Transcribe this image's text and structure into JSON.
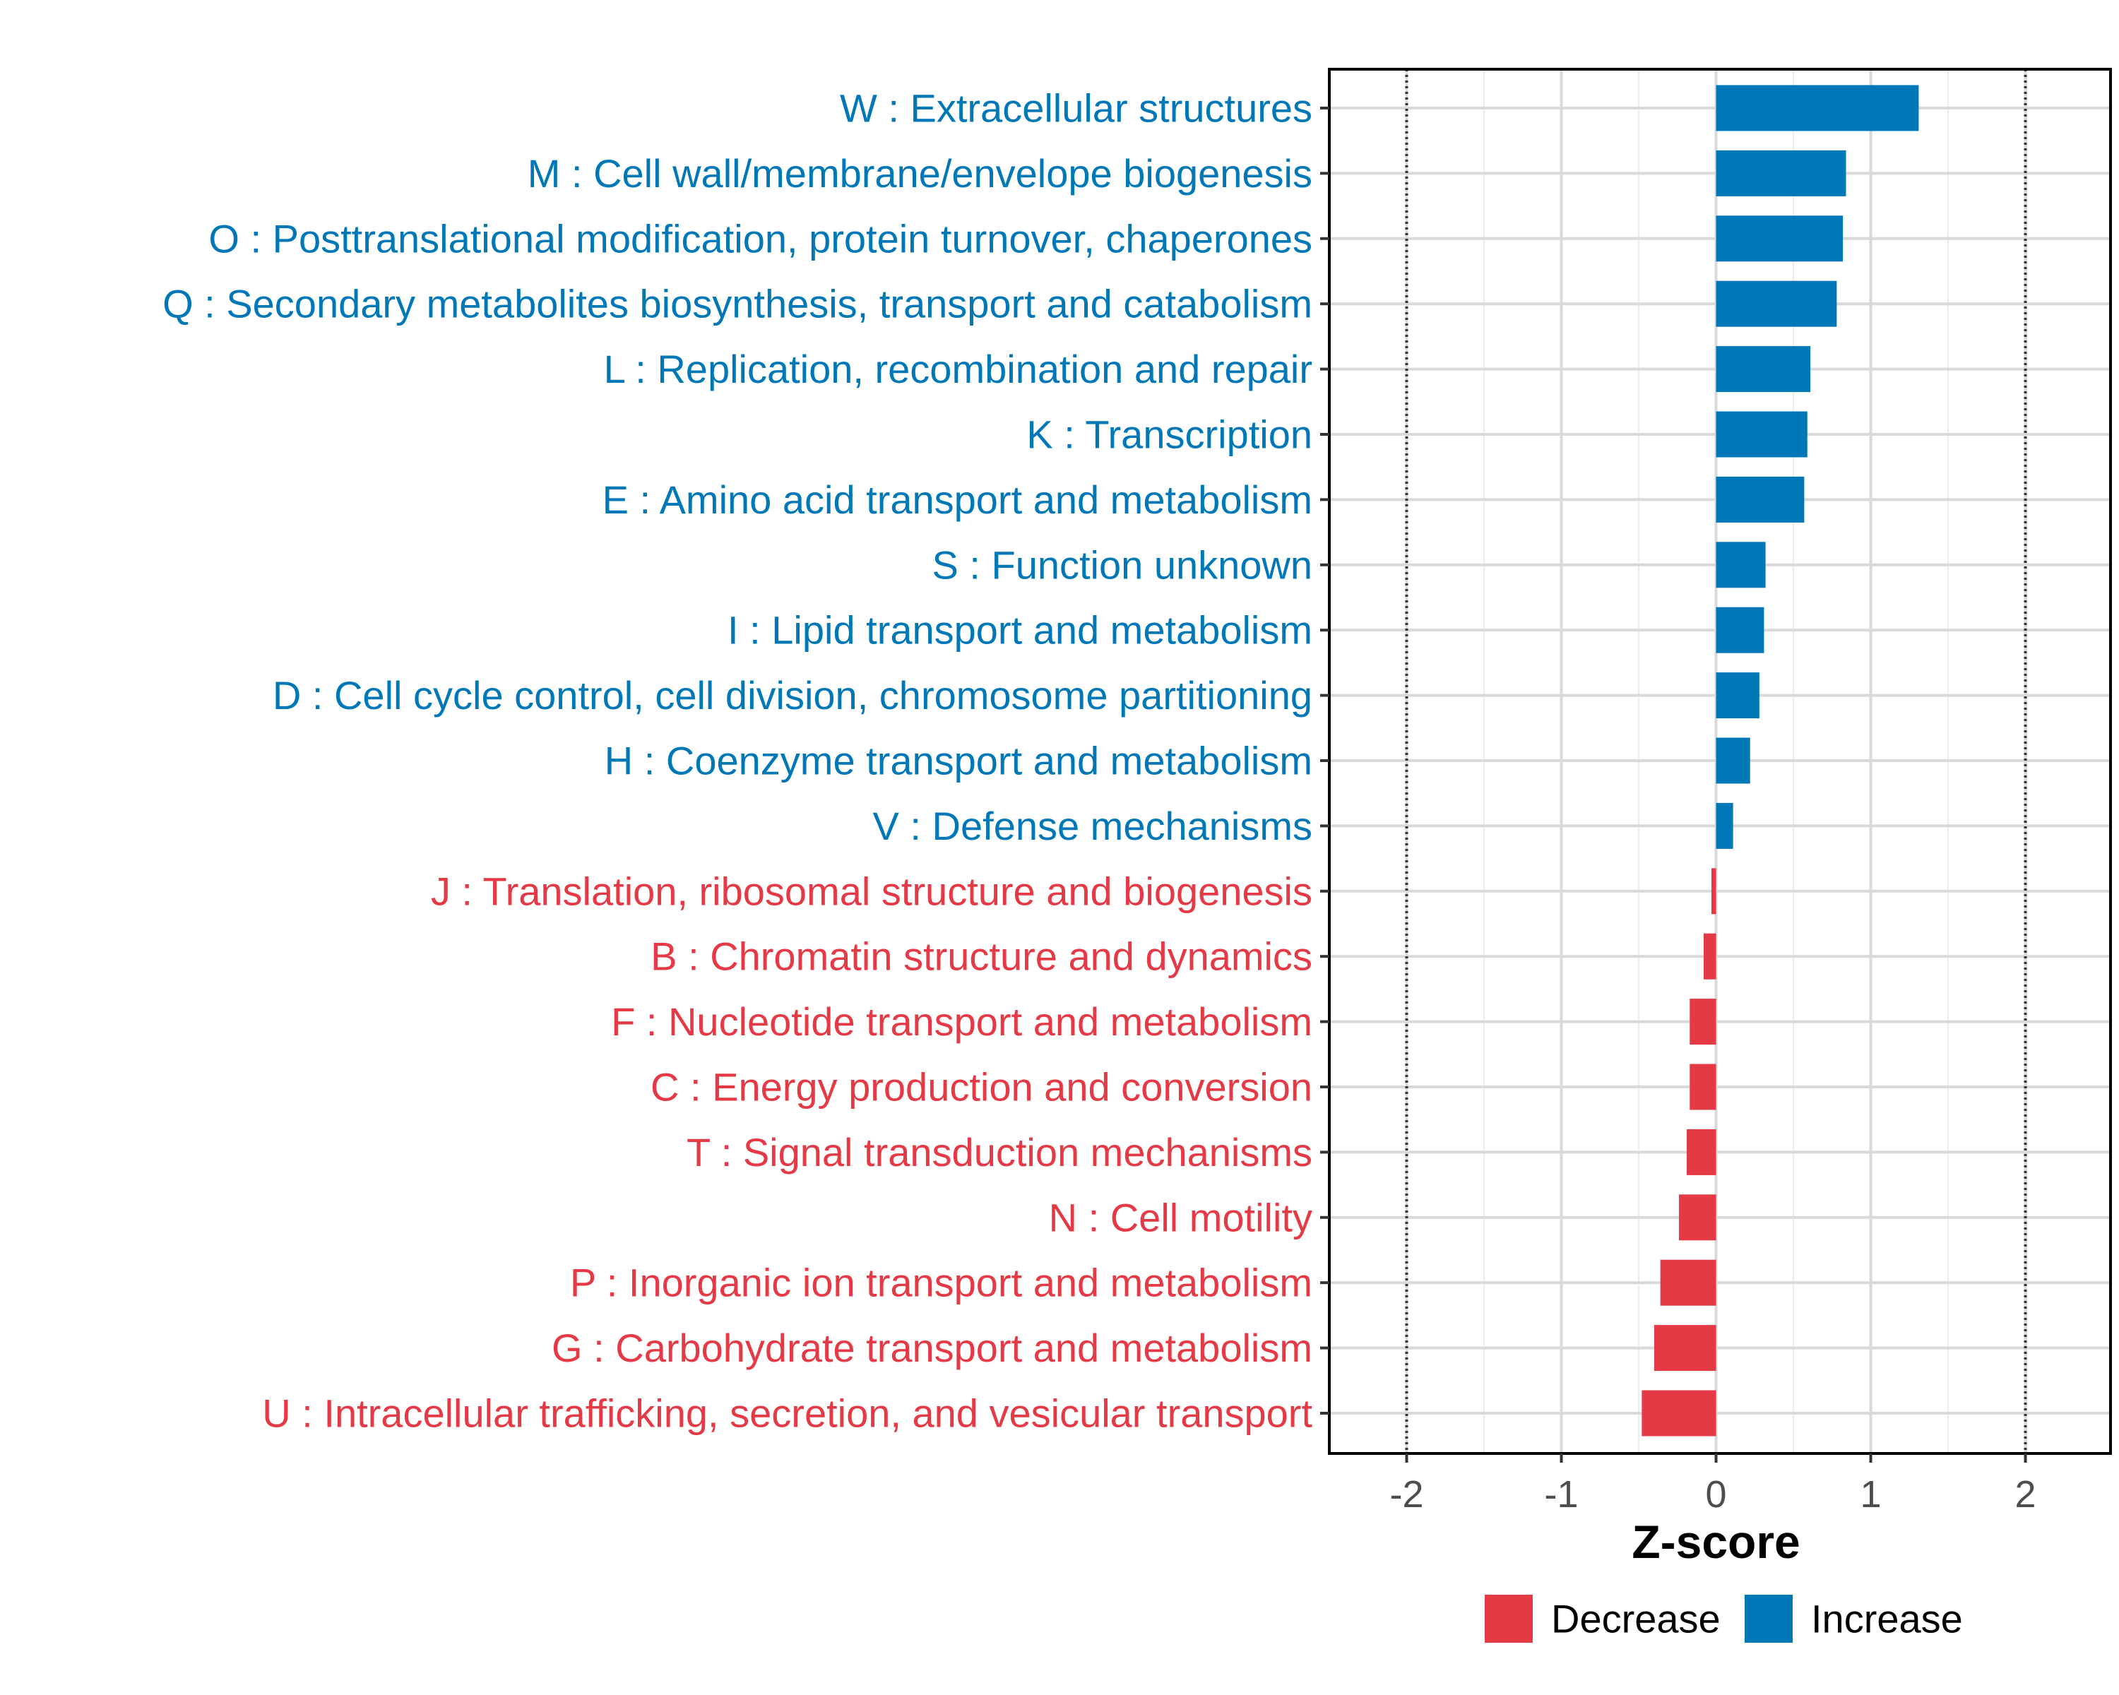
{
  "chart_data": {
    "type": "bar",
    "orientation": "horizontal",
    "xlabel": "Z-score",
    "xlim": [
      -2.5,
      2.55
    ],
    "xticks": [
      -2,
      -1,
      0,
      1,
      2
    ],
    "xtick_labels": [
      "-2",
      "-1",
      "0",
      "1",
      "2"
    ],
    "reference_lines": [
      -2,
      2
    ],
    "grid": true,
    "legend_position": "bottom-right",
    "legend": [
      {
        "key": "Decrease",
        "label": "Decrease",
        "color": "#E63946"
      },
      {
        "key": "Increase",
        "label": "Increase",
        "color": "#0077B6"
      }
    ],
    "categories": [
      "W : Extracellular structures",
      "M : Cell wall/membrane/envelope biogenesis",
      "O : Posttranslational modification, protein turnover, chaperones",
      "Q : Secondary metabolites biosynthesis, transport and catabolism",
      "L : Replication, recombination and repair",
      "K : Transcription",
      "E : Amino acid transport and metabolism",
      "S : Function unknown",
      "I : Lipid transport and metabolism",
      "D : Cell cycle control, cell division, chromosome partitioning",
      "H : Coenzyme transport and metabolism",
      "V : Defense mechanisms",
      "J : Translation, ribosomal structure and biogenesis",
      "B : Chromatin structure and dynamics",
      "F : Nucleotide transport and metabolism",
      "C : Energy production and conversion",
      "T : Signal transduction mechanisms",
      "N : Cell motility",
      "P : Inorganic ion transport and metabolism",
      "G : Carbohydrate transport and metabolism",
      "U : Intracellular trafficking, secretion, and vesicular transport"
    ],
    "values": [
      1.31,
      0.84,
      0.82,
      0.78,
      0.61,
      0.59,
      0.57,
      0.32,
      0.31,
      0.28,
      0.22,
      0.11,
      -0.03,
      -0.08,
      -0.17,
      -0.17,
      -0.19,
      -0.24,
      -0.36,
      -0.4,
      -0.48
    ],
    "groups": [
      "Increase",
      "Increase",
      "Increase",
      "Increase",
      "Increase",
      "Increase",
      "Increase",
      "Increase",
      "Increase",
      "Increase",
      "Increase",
      "Increase",
      "Decrease",
      "Decrease",
      "Decrease",
      "Decrease",
      "Decrease",
      "Decrease",
      "Decrease",
      "Decrease",
      "Decrease"
    ]
  }
}
